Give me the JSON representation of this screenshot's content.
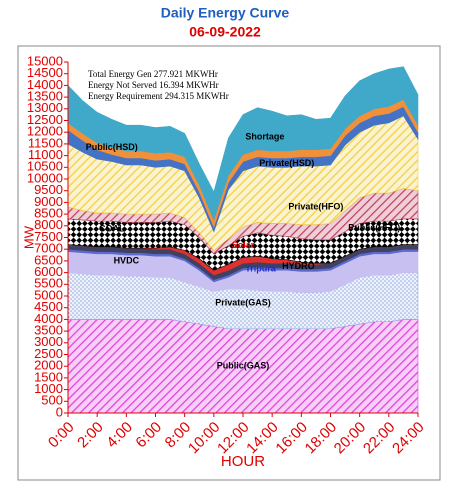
{
  "chart_data": {
    "type": "stacked-area",
    "title": "Daily Energy Curve",
    "subtitle": "06-09-2022",
    "x_label": "HOUR",
    "y_label": "MW",
    "annotations": [
      "Total Energy Gen 277.921 MKWHr",
      "Energy Not Served  16.394 MKWHr",
      "Energy Requirement   294.315 MKWHr"
    ],
    "x": [
      0,
      1,
      2,
      3,
      4,
      5,
      6,
      7,
      8,
      9,
      10,
      11,
      12,
      13,
      14,
      15,
      16,
      17,
      18,
      19,
      20,
      21,
      22,
      23,
      24
    ],
    "xlim": [
      0,
      24
    ],
    "xticks": [
      {
        "value": 0,
        "label": "0:00"
      },
      {
        "value": 2,
        "label": "2:00"
      },
      {
        "value": 4,
        "label": "4:00"
      },
      {
        "value": 6,
        "label": "6:00"
      },
      {
        "value": 8,
        "label": "8:00"
      },
      {
        "value": 10,
        "label": "10:00"
      },
      {
        "value": 12,
        "label": "12:00"
      },
      {
        "value": 14,
        "label": "14:00"
      },
      {
        "value": 16,
        "label": "16:00"
      },
      {
        "value": 18,
        "label": "18:00"
      },
      {
        "value": 20,
        "label": "20:00"
      },
      {
        "value": 22,
        "label": "22:00"
      },
      {
        "value": 24,
        "label": "24:00"
      }
    ],
    "ylim": [
      0,
      15000
    ],
    "yticks": [
      0,
      500,
      1000,
      1500,
      2000,
      2500,
      3000,
      3500,
      4000,
      4500,
      5000,
      5500,
      6000,
      6500,
      7000,
      7500,
      8000,
      8500,
      9000,
      9500,
      10000,
      10500,
      11000,
      11500,
      12000,
      12500,
      13000,
      13500,
      14000,
      14500,
      15000
    ],
    "series": [
      {
        "name": "Public(GAS)",
        "color": "#e040e0",
        "pattern": "hatch",
        "values": [
          4000,
          4000,
          4000,
          4000,
          4000,
          4000,
          4000,
          4000,
          3900,
          3800,
          3700,
          3600,
          3600,
          3600,
          3600,
          3600,
          3600,
          3600,
          3600,
          3700,
          3800,
          3900,
          3900,
          4000,
          4000
        ]
      },
      {
        "name": "Private(GAS)",
        "color": "#8fa8e0",
        "pattern": "dots",
        "values": [
          2000,
          1950,
          1900,
          1900,
          1850,
          1850,
          1800,
          1800,
          1700,
          1600,
          1500,
          1700,
          1700,
          1650,
          1600,
          1600,
          1550,
          1550,
          1600,
          1800,
          2000,
          2000,
          2000,
          2000,
          2000
        ]
      },
      {
        "name": "HVDC",
        "color": "#c8c0f0",
        "pattern": "solid",
        "values": [
          900,
          900,
          900,
          900,
          900,
          900,
          900,
          900,
          900,
          700,
          400,
          500,
          800,
          900,
          900,
          900,
          900,
          900,
          900,
          900,
          900,
          900,
          900,
          900,
          900
        ]
      },
      {
        "name": "Tripura",
        "color": "#5a6ad0",
        "pattern": "solid",
        "values": [
          100,
          100,
          100,
          100,
          100,
          100,
          100,
          100,
          100,
          100,
          100,
          100,
          100,
          100,
          100,
          100,
          100,
          100,
          100,
          100,
          100,
          100,
          100,
          100,
          100
        ]
      },
      {
        "name": "HYDRO",
        "color": "#404060",
        "pattern": "solid",
        "values": [
          200,
          200,
          200,
          200,
          200,
          200,
          200,
          200,
          200,
          200,
          200,
          200,
          200,
          200,
          200,
          200,
          200,
          200,
          200,
          200,
          200,
          200,
          200,
          200,
          200
        ]
      },
      {
        "name": "Solar",
        "color": "#e03030",
        "pattern": "solid",
        "values": [
          0,
          0,
          0,
          0,
          0,
          0,
          50,
          100,
          150,
          200,
          200,
          250,
          250,
          250,
          200,
          150,
          100,
          50,
          0,
          0,
          0,
          0,
          0,
          0,
          0
        ]
      },
      {
        "name": "COAL",
        "color": "#000000",
        "pattern": "checker",
        "values": [
          1100,
          1100,
          1100,
          1100,
          1100,
          1100,
          1100,
          1100,
          1100,
          900,
          700,
          800,
          900,
          1000,
          1000,
          1000,
          1000,
          1000,
          1000,
          1050,
          1100,
          1100,
          1100,
          1100,
          1100
        ]
      },
      {
        "name": "Public(HFO)",
        "color": "#c04060",
        "pattern": "hatch",
        "values": [
          500,
          400,
          350,
          350,
          350,
          350,
          350,
          350,
          300,
          200,
          150,
          300,
          400,
          450,
          500,
          550,
          600,
          650,
          700,
          900,
          1100,
          1200,
          1200,
          1300,
          1200
        ]
      },
      {
        "name": "Private(HFO)",
        "color": "#f0d040",
        "pattern": "hatch",
        "values": [
          2700,
          2500,
          2300,
          2200,
          2100,
          2100,
          2000,
          2000,
          2000,
          1500,
          800,
          2100,
          2400,
          2400,
          2400,
          2400,
          2500,
          2500,
          2500,
          2800,
          2800,
          2900,
          3000,
          3100,
          2200
        ]
      },
      {
        "name": "Private(HSD)",
        "color": "#4472c4",
        "pattern": "solid",
        "values": [
          600,
          500,
          400,
          300,
          300,
          300,
          300,
          300,
          300,
          250,
          200,
          300,
          400,
          400,
          400,
          400,
          400,
          400,
          400,
          400,
          400,
          400,
          400,
          400,
          300
        ]
      },
      {
        "name": "Public(HSD)",
        "color": "#f0903a",
        "pattern": "solid",
        "values": [
          300,
          300,
          300,
          300,
          300,
          300,
          300,
          300,
          300,
          300,
          300,
          300,
          300,
          300,
          300,
          300,
          300,
          300,
          300,
          300,
          300,
          300,
          300,
          300,
          300
        ]
      },
      {
        "name": "Shortage",
        "color": "#40a8c8",
        "pattern": "solid",
        "values": [
          1600,
          1400,
          1300,
          1200,
          1100,
          1100,
          1100,
          1100,
          1000,
          900,
          1200,
          1600,
          1700,
          1800,
          1700,
          1500,
          1500,
          1300,
          1300,
          1400,
          1500,
          1500,
          1600,
          1400,
          1300
        ]
      }
    ]
  }
}
